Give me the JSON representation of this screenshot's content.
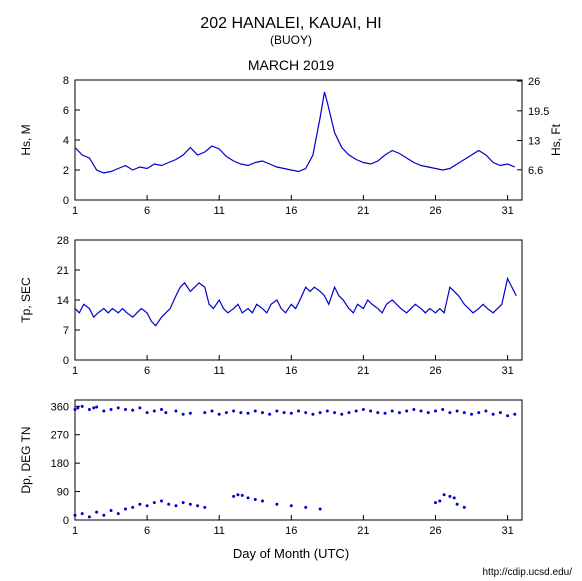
{
  "title": "202 HANALEI, KAUAI, HI",
  "subtitle": "(BUOY)",
  "month": "MARCH 2019",
  "footer_url": "http://cdip.ucsd.edu/",
  "xaxis_label": "Day of Month (UTC)",
  "colors": {
    "line": "#0000cc",
    "scatter": "#0000cc",
    "axis": "#000000",
    "text": "#000000",
    "bg": "#ffffff"
  },
  "panel_hs": {
    "ylabel_left": "Hs, M",
    "ylabel_right": "Hs, Ft",
    "ylim": [
      0,
      8
    ],
    "yticks": [
      0,
      2,
      4,
      6,
      8
    ],
    "yticks_right": [
      6.6,
      13,
      19.5,
      26
    ],
    "xlim": [
      1,
      32
    ],
    "xticks": [
      1,
      6,
      11,
      16,
      21,
      26,
      31
    ],
    "series": [
      [
        1,
        3.5
      ],
      [
        1.5,
        3.0
      ],
      [
        2,
        2.8
      ],
      [
        2.5,
        2.0
      ],
      [
        3,
        1.8
      ],
      [
        3.5,
        1.9
      ],
      [
        4,
        2.1
      ],
      [
        4.5,
        2.3
      ],
      [
        5,
        2.0
      ],
      [
        5.5,
        2.2
      ],
      [
        6,
        2.1
      ],
      [
        6.5,
        2.4
      ],
      [
        7,
        2.3
      ],
      [
        7.5,
        2.5
      ],
      [
        8,
        2.7
      ],
      [
        8.5,
        3.0
      ],
      [
        9,
        3.5
      ],
      [
        9.5,
        3.0
      ],
      [
        10,
        3.2
      ],
      [
        10.5,
        3.6
      ],
      [
        11,
        3.4
      ],
      [
        11.5,
        2.9
      ],
      [
        12,
        2.6
      ],
      [
        12.5,
        2.4
      ],
      [
        13,
        2.3
      ],
      [
        13.5,
        2.5
      ],
      [
        14,
        2.6
      ],
      [
        14.5,
        2.4
      ],
      [
        15,
        2.2
      ],
      [
        15.5,
        2.1
      ],
      [
        16,
        2.0
      ],
      [
        16.5,
        1.9
      ],
      [
        17,
        2.1
      ],
      [
        17.5,
        3.0
      ],
      [
        18,
        5.5
      ],
      [
        18.3,
        7.2
      ],
      [
        18.5,
        6.5
      ],
      [
        19,
        4.5
      ],
      [
        19.5,
        3.5
      ],
      [
        20,
        3.0
      ],
      [
        20.5,
        2.7
      ],
      [
        21,
        2.5
      ],
      [
        21.5,
        2.4
      ],
      [
        22,
        2.6
      ],
      [
        22.5,
        3.0
      ],
      [
        23,
        3.3
      ],
      [
        23.5,
        3.1
      ],
      [
        24,
        2.8
      ],
      [
        24.5,
        2.5
      ],
      [
        25,
        2.3
      ],
      [
        25.5,
        2.2
      ],
      [
        26,
        2.1
      ],
      [
        26.5,
        2.0
      ],
      [
        27,
        2.1
      ],
      [
        27.5,
        2.4
      ],
      [
        28,
        2.7
      ],
      [
        28.5,
        3.0
      ],
      [
        29,
        3.3
      ],
      [
        29.5,
        3.0
      ],
      [
        30,
        2.5
      ],
      [
        30.5,
        2.3
      ],
      [
        31,
        2.4
      ],
      [
        31.5,
        2.2
      ]
    ]
  },
  "panel_tp": {
    "ylabel": "Tp, SEC",
    "ylim": [
      0,
      28
    ],
    "yticks": [
      0,
      7,
      14,
      21,
      28
    ],
    "xlim": [
      1,
      32
    ],
    "xticks": [
      1,
      6,
      11,
      16,
      21,
      26,
      31
    ],
    "series": [
      [
        1,
        12
      ],
      [
        1.3,
        11
      ],
      [
        1.6,
        13
      ],
      [
        2,
        12
      ],
      [
        2.3,
        10
      ],
      [
        2.6,
        11
      ],
      [
        3,
        12
      ],
      [
        3.3,
        11
      ],
      [
        3.6,
        12
      ],
      [
        4,
        11
      ],
      [
        4.3,
        12
      ],
      [
        4.6,
        11
      ],
      [
        5,
        10
      ],
      [
        5.3,
        11
      ],
      [
        5.6,
        12
      ],
      [
        6,
        11
      ],
      [
        6.3,
        9
      ],
      [
        6.6,
        8
      ],
      [
        7,
        10
      ],
      [
        7.3,
        11
      ],
      [
        7.6,
        12
      ],
      [
        8,
        15
      ],
      [
        8.3,
        17
      ],
      [
        8.6,
        18
      ],
      [
        9,
        16
      ],
      [
        9.3,
        17
      ],
      [
        9.6,
        18
      ],
      [
        10,
        17
      ],
      [
        10.3,
        13
      ],
      [
        10.6,
        12
      ],
      [
        11,
        14
      ],
      [
        11.3,
        12
      ],
      [
        11.6,
        11
      ],
      [
        12,
        12
      ],
      [
        12.3,
        13
      ],
      [
        12.6,
        11
      ],
      [
        13,
        12
      ],
      [
        13.3,
        11
      ],
      [
        13.6,
        13
      ],
      [
        14,
        12
      ],
      [
        14.3,
        11
      ],
      [
        14.6,
        13
      ],
      [
        15,
        14
      ],
      [
        15.3,
        12
      ],
      [
        15.6,
        11
      ],
      [
        16,
        13
      ],
      [
        16.3,
        12
      ],
      [
        16.6,
        14
      ],
      [
        17,
        17
      ],
      [
        17.3,
        16
      ],
      [
        17.6,
        17
      ],
      [
        18,
        16
      ],
      [
        18.3,
        15
      ],
      [
        18.6,
        13
      ],
      [
        19,
        17
      ],
      [
        19.3,
        15
      ],
      [
        19.6,
        14
      ],
      [
        20,
        12
      ],
      [
        20.3,
        11
      ],
      [
        20.6,
        13
      ],
      [
        21,
        12
      ],
      [
        21.3,
        14
      ],
      [
        21.6,
        13
      ],
      [
        22,
        12
      ],
      [
        22.3,
        11
      ],
      [
        22.6,
        13
      ],
      [
        23,
        14
      ],
      [
        23.3,
        13
      ],
      [
        23.6,
        12
      ],
      [
        24,
        11
      ],
      [
        24.3,
        12
      ],
      [
        24.6,
        13
      ],
      [
        25,
        12
      ],
      [
        25.3,
        11
      ],
      [
        25.6,
        12
      ],
      [
        26,
        11
      ],
      [
        26.3,
        12
      ],
      [
        26.6,
        11
      ],
      [
        27,
        17
      ],
      [
        27.3,
        16
      ],
      [
        27.6,
        15
      ],
      [
        28,
        13
      ],
      [
        28.3,
        12
      ],
      [
        28.6,
        11
      ],
      [
        29,
        12
      ],
      [
        29.3,
        13
      ],
      [
        29.6,
        12
      ],
      [
        30,
        11
      ],
      [
        30.3,
        12
      ],
      [
        30.6,
        13
      ],
      [
        31,
        19
      ],
      [
        31.3,
        17
      ],
      [
        31.6,
        15
      ]
    ]
  },
  "panel_dp": {
    "ylabel": "Dp, DEG TN",
    "ylim": [
      0,
      380
    ],
    "yticks": [
      0,
      90,
      180,
      270,
      360
    ],
    "xlim": [
      1,
      32
    ],
    "xticks": [
      1,
      6,
      11,
      16,
      21,
      26,
      31
    ],
    "points_high": [
      [
        1,
        350
      ],
      [
        1.2,
        355
      ],
      [
        1.5,
        360
      ],
      [
        2,
        350
      ],
      [
        2.3,
        355
      ],
      [
        2.5,
        358
      ],
      [
        3,
        345
      ],
      [
        3.5,
        350
      ],
      [
        4,
        355
      ],
      [
        4.5,
        350
      ],
      [
        5,
        348
      ],
      [
        5.5,
        355
      ],
      [
        6,
        340
      ],
      [
        6.5,
        345
      ],
      [
        7,
        350
      ],
      [
        7.3,
        340
      ],
      [
        8,
        345
      ],
      [
        8.5,
        335
      ],
      [
        9,
        338
      ],
      [
        10,
        340
      ],
      [
        10.5,
        345
      ],
      [
        11,
        335
      ],
      [
        11.5,
        340
      ],
      [
        12,
        345
      ],
      [
        12.5,
        340
      ],
      [
        13,
        338
      ],
      [
        13.5,
        345
      ],
      [
        14,
        340
      ],
      [
        14.5,
        335
      ],
      [
        15,
        345
      ],
      [
        15.5,
        340
      ],
      [
        16,
        338
      ],
      [
        16.5,
        345
      ],
      [
        17,
        340
      ],
      [
        17.5,
        335
      ],
      [
        18,
        340
      ],
      [
        18.5,
        345
      ],
      [
        19,
        340
      ],
      [
        19.5,
        335
      ],
      [
        20,
        340
      ],
      [
        20.5,
        345
      ],
      [
        21,
        350
      ],
      [
        21.5,
        345
      ],
      [
        22,
        340
      ],
      [
        22.5,
        338
      ],
      [
        23,
        345
      ],
      [
        23.5,
        340
      ],
      [
        24,
        345
      ],
      [
        24.5,
        350
      ],
      [
        25,
        345
      ],
      [
        25.5,
        340
      ],
      [
        26,
        345
      ],
      [
        26.5,
        350
      ],
      [
        27,
        340
      ],
      [
        27.5,
        345
      ],
      [
        28,
        340
      ],
      [
        28.5,
        335
      ],
      [
        29,
        340
      ],
      [
        29.5,
        345
      ],
      [
        30,
        335
      ],
      [
        30.5,
        340
      ],
      [
        31,
        330
      ],
      [
        31.5,
        335
      ]
    ],
    "points_low": [
      [
        1,
        15
      ],
      [
        1.5,
        20
      ],
      [
        2,
        10
      ],
      [
        2.5,
        25
      ],
      [
        3,
        15
      ],
      [
        3.5,
        30
      ],
      [
        4,
        20
      ],
      [
        4.5,
        35
      ],
      [
        5,
        40
      ],
      [
        5.5,
        50
      ],
      [
        6,
        45
      ],
      [
        6.5,
        55
      ],
      [
        7,
        60
      ],
      [
        7.5,
        50
      ],
      [
        8,
        45
      ],
      [
        8.5,
        55
      ],
      [
        9,
        50
      ],
      [
        9.5,
        45
      ],
      [
        10,
        40
      ],
      [
        12,
        75
      ],
      [
        12.3,
        80
      ],
      [
        12.6,
        78
      ],
      [
        13,
        70
      ],
      [
        13.5,
        65
      ],
      [
        14,
        60
      ],
      [
        15,
        50
      ],
      [
        16,
        45
      ],
      [
        17,
        40
      ],
      [
        18,
        35
      ],
      [
        26,
        55
      ],
      [
        26.3,
        60
      ],
      [
        26.6,
        80
      ],
      [
        27,
        75
      ],
      [
        27.3,
        70
      ],
      [
        27.5,
        50
      ],
      [
        28,
        40
      ]
    ]
  }
}
